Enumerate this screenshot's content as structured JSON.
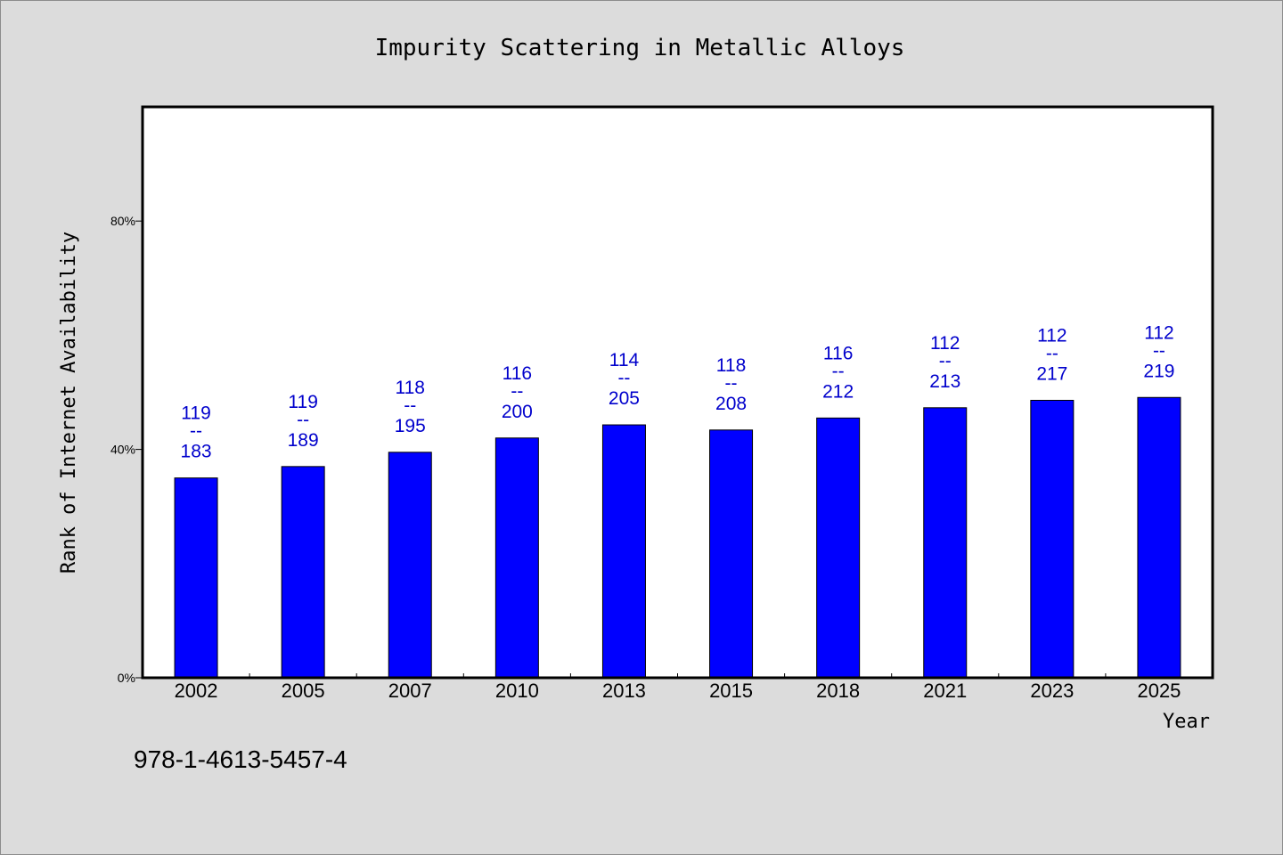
{
  "chart_data": {
    "type": "bar",
    "title": "Impurity Scattering in Metallic Alloys",
    "xlabel": "Year",
    "ylabel": "Rank of Internet Availability",
    "ylim": [
      0,
      100
    ],
    "yticks": [
      0,
      40,
      80
    ],
    "ytick_labels": [
      "0%",
      "40%",
      "80%"
    ],
    "categories": [
      "2002",
      "2005",
      "2007",
      "2010",
      "2013",
      "2015",
      "2018",
      "2021",
      "2023",
      "2025"
    ],
    "values": [
      35.0,
      37.0,
      39.5,
      42.0,
      44.3,
      43.4,
      45.5,
      47.3,
      48.6,
      49.1
    ],
    "annotations": [
      {
        "top": "119",
        "sep": "--",
        "bottom": "183"
      },
      {
        "top": "119",
        "sep": "--",
        "bottom": "189"
      },
      {
        "top": "118",
        "sep": "--",
        "bottom": "195"
      },
      {
        "top": "116",
        "sep": "--",
        "bottom": "200"
      },
      {
        "top": "114",
        "sep": "--",
        "bottom": "205"
      },
      {
        "top": "118",
        "sep": "--",
        "bottom": "208"
      },
      {
        "top": "116",
        "sep": "--",
        "bottom": "212"
      },
      {
        "top": "112",
        "sep": "--",
        "bottom": "213"
      },
      {
        "top": "112",
        "sep": "--",
        "bottom": "217"
      },
      {
        "top": "112",
        "sep": "--",
        "bottom": "219"
      }
    ],
    "bar_color": "#0000ff",
    "label_color": "#0000cc",
    "plot_background": "#ffffff",
    "figure_background": "#dcdcdc",
    "grid": false,
    "legend": "none"
  },
  "footer": {
    "isbn": "978-1-4613-5457-4"
  }
}
